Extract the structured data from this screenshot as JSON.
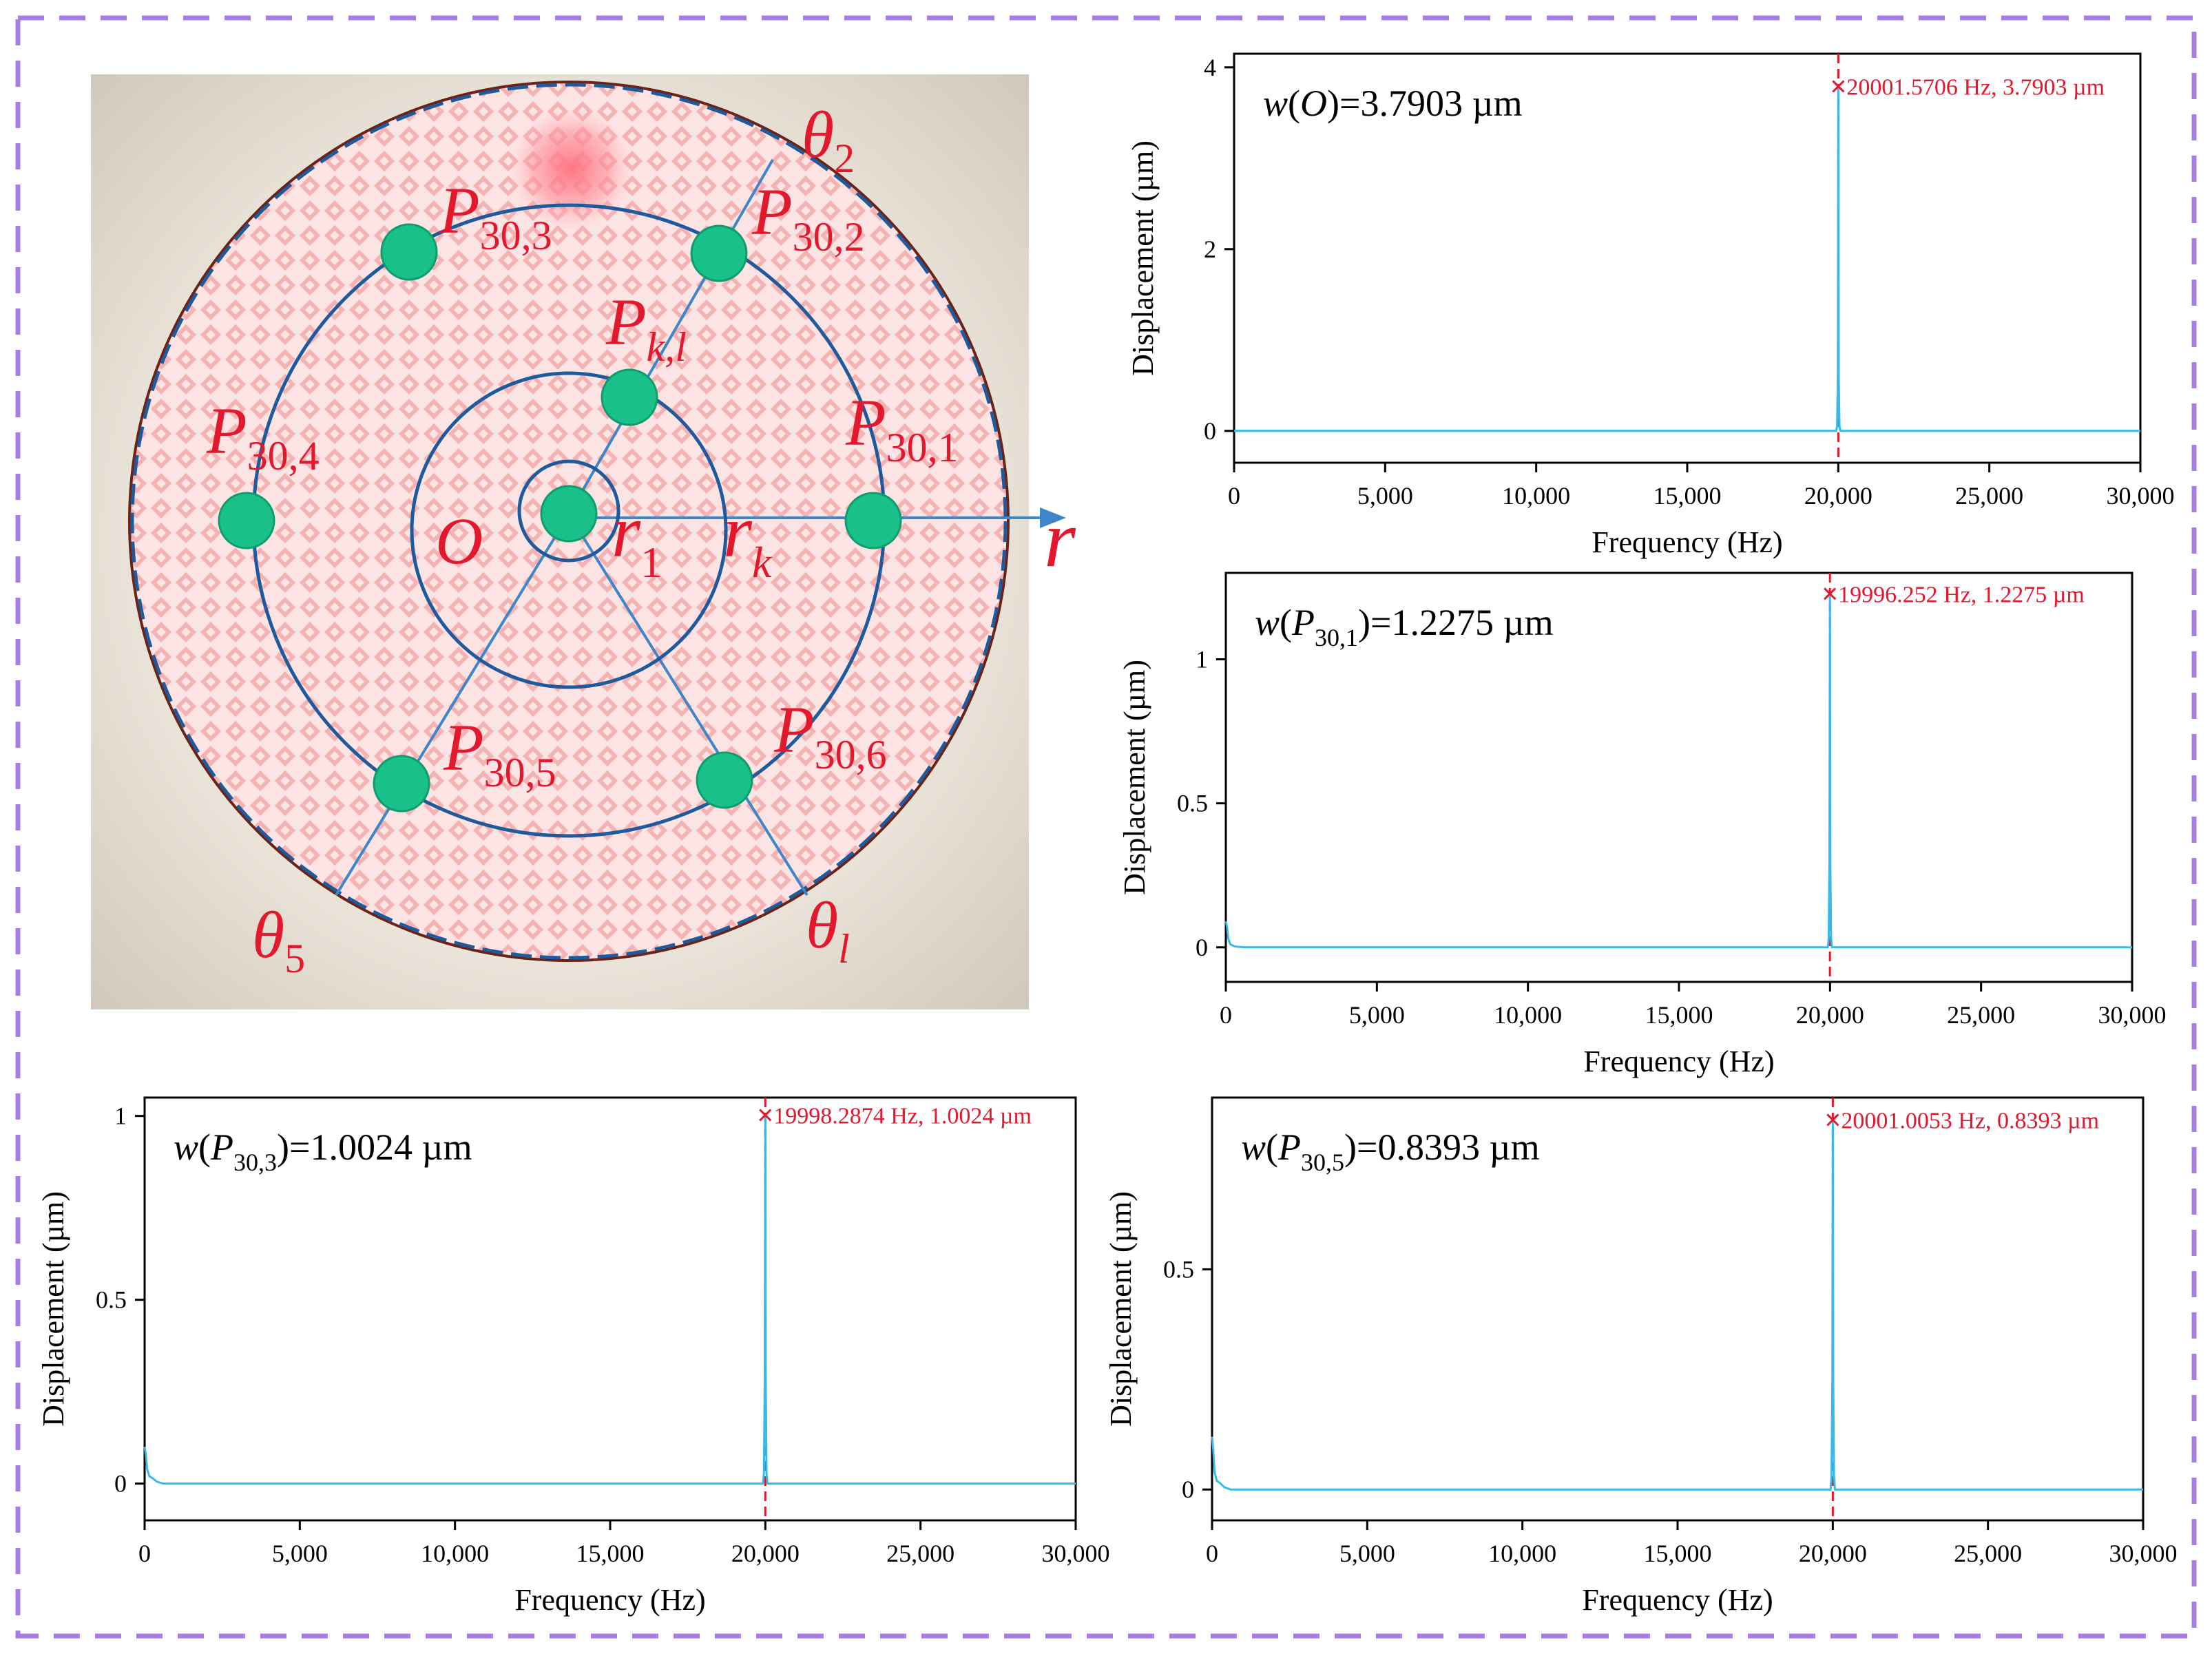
{
  "colors": {
    "frame": "#a87de3",
    "disk_fill": "#fde4e4",
    "disk_pattern": "#f3a9a9",
    "disk_edge": "#7a2a20",
    "board": "#e4ddd2",
    "circle_line": "#1f5b9c",
    "spoke_line": "#3f86c9",
    "point": "#19c08a",
    "point_edge": "#0f9d6e",
    "label_red": "#e3182d",
    "trace": "#39b9e8",
    "marker": "#e3182d",
    "axis": "#000000"
  },
  "diagram": {
    "labels": {
      "theta2": {
        "base": "θ",
        "sub": "2"
      },
      "theta5": {
        "base": "θ",
        "sub": "5"
      },
      "thetal": {
        "base": "θ",
        "sub": "l"
      },
      "p303": {
        "base": "P",
        "sub": "30,3"
      },
      "p302": {
        "base": "P",
        "sub": "30,2"
      },
      "pkl": {
        "base": "P",
        "sub": "k,l"
      },
      "p304": {
        "base": "P",
        "sub": "30,4"
      },
      "p301": {
        "base": "P",
        "sub": "30,1"
      },
      "p305": {
        "base": "P",
        "sub": "30,5"
      },
      "p306": {
        "base": "P",
        "sub": "30,6"
      },
      "origin": {
        "base": "O",
        "sub": ""
      },
      "r1": {
        "base": "r",
        "sub": "1"
      },
      "rk": {
        "base": "r",
        "sub": "k"
      },
      "axis_r": {
        "base": "r",
        "sub": ""
      }
    }
  },
  "chart_data": [
    {
      "type": "line",
      "id": "chart_O",
      "annotation": {
        "prefix": "w(",
        "point": "O",
        "sub": "",
        "suffix": ")=3.7903 µm"
      },
      "xlabel": "Frequency (Hz)",
      "ylabel": "Displacement (µm)",
      "xlim": [
        0,
        30000
      ],
      "ylim": [
        -0.35,
        4.15
      ],
      "xticks": [
        0,
        5000,
        10000,
        15000,
        20000,
        25000,
        30000
      ],
      "xtick_labels": [
        "0",
        "5,000",
        "10,000",
        "15,000",
        "20,000",
        "25,000",
        "30,000"
      ],
      "yticks": [
        0,
        2,
        4
      ],
      "ytick_labels": [
        "0",
        "2",
        "4"
      ],
      "series": [
        {
          "name": "w(O)",
          "x": [
            0,
            19930,
            19960,
            19985,
            20001.57,
            20015,
            20040,
            20070,
            30000
          ],
          "y": [
            0,
            0,
            0.05,
            0.6,
            3.7903,
            0.6,
            0.05,
            0,
            0
          ]
        }
      ],
      "peak": {
        "x": 20001.5706,
        "y": 3.7903,
        "label": "20001.5706 Hz, 3.7903 µm"
      }
    },
    {
      "type": "line",
      "id": "chart_P301",
      "annotation": {
        "prefix": "w(",
        "point": "P",
        "sub": "30,1",
        "suffix": ")=1.2275 µm"
      },
      "xlabel": "Frequency (Hz)",
      "ylabel": "Displacement (µm)",
      "xlim": [
        0,
        30000
      ],
      "ylim": [
        -0.12,
        1.3
      ],
      "xticks": [
        0,
        5000,
        10000,
        15000,
        20000,
        25000,
        30000
      ],
      "xtick_labels": [
        "0",
        "5,000",
        "10,000",
        "15,000",
        "20,000",
        "25,000",
        "30,000"
      ],
      "yticks": [
        0,
        0.5,
        1
      ],
      "ytick_labels": [
        "0",
        "0.5",
        "1"
      ],
      "series": [
        {
          "name": "w(P30,1)",
          "x": [
            0,
            40,
            80,
            150,
            300,
            600,
            19925,
            19955,
            19980,
            19996.25,
            20010,
            20035,
            20065,
            30000
          ],
          "y": [
            0.09,
            0.07,
            0.03,
            0.01,
            0.003,
            0,
            0,
            0.03,
            0.3,
            1.2275,
            0.3,
            0.03,
            0,
            0
          ]
        }
      ],
      "peak": {
        "x": 19996.252,
        "y": 1.2275,
        "label": "19996.252 Hz, 1.2275 µm"
      }
    },
    {
      "type": "line",
      "id": "chart_P303",
      "annotation": {
        "prefix": "w(",
        "point": "P",
        "sub": "30,3",
        "suffix": ")=1.0024 µm"
      },
      "xlabel": "Frequency (Hz)",
      "ylabel": "Displacement (µm)",
      "xlim": [
        0,
        30000
      ],
      "ylim": [
        -0.1,
        1.05
      ],
      "xticks": [
        0,
        5000,
        10000,
        15000,
        20000,
        25000,
        30000
      ],
      "xtick_labels": [
        "0",
        "5,000",
        "10,000",
        "15,000",
        "20,000",
        "25,000",
        "30,000"
      ],
      "yticks": [
        0,
        0.5,
        1
      ],
      "ytick_labels": [
        "0",
        "0.5",
        "1"
      ],
      "series": [
        {
          "name": "w(P30,3)",
          "x": [
            0,
            40,
            80,
            150,
            250,
            400,
            600,
            19925,
            19955,
            19982,
            19998.29,
            20012,
            20038,
            20068,
            30000
          ],
          "y": [
            0.1,
            0.08,
            0.04,
            0.02,
            0.015,
            0.005,
            0,
            0,
            0.03,
            0.3,
            1.0024,
            0.3,
            0.03,
            0,
            0
          ]
        }
      ],
      "peak": {
        "x": 19998.2874,
        "y": 1.0024,
        "label": "19998.2874 Hz, 1.0024 µm"
      }
    },
    {
      "type": "line",
      "id": "chart_P305",
      "annotation": {
        "prefix": "w(",
        "point": "P",
        "sub": "30,5",
        "suffix": ")=0.8393 µm"
      },
      "xlabel": "Frequency (Hz)",
      "ylabel": "Displacement (µm)",
      "xlim": [
        0,
        30000
      ],
      "ylim": [
        -0.07,
        0.89
      ],
      "xticks": [
        0,
        5000,
        10000,
        15000,
        20000,
        25000,
        30000
      ],
      "xtick_labels": [
        "0",
        "5,000",
        "10,000",
        "15,000",
        "20,000",
        "25,000",
        "30,000"
      ],
      "yticks": [
        0,
        0.5
      ],
      "ytick_labels": [
        "0",
        "0.5"
      ],
      "series": [
        {
          "name": "w(P30,5)",
          "x": [
            0,
            40,
            80,
            150,
            250,
            400,
            600,
            19930,
            19960,
            19985,
            20001.01,
            20015,
            20040,
            20070,
            30000
          ],
          "y": [
            0.12,
            0.09,
            0.04,
            0.02,
            0.015,
            0.005,
            0,
            0,
            0.03,
            0.25,
            0.8393,
            0.25,
            0.03,
            0,
            0
          ]
        }
      ],
      "peak": {
        "x": 20001.0053,
        "y": 0.8393,
        "label": "20001.0053 Hz, 0.8393 µm"
      }
    }
  ]
}
